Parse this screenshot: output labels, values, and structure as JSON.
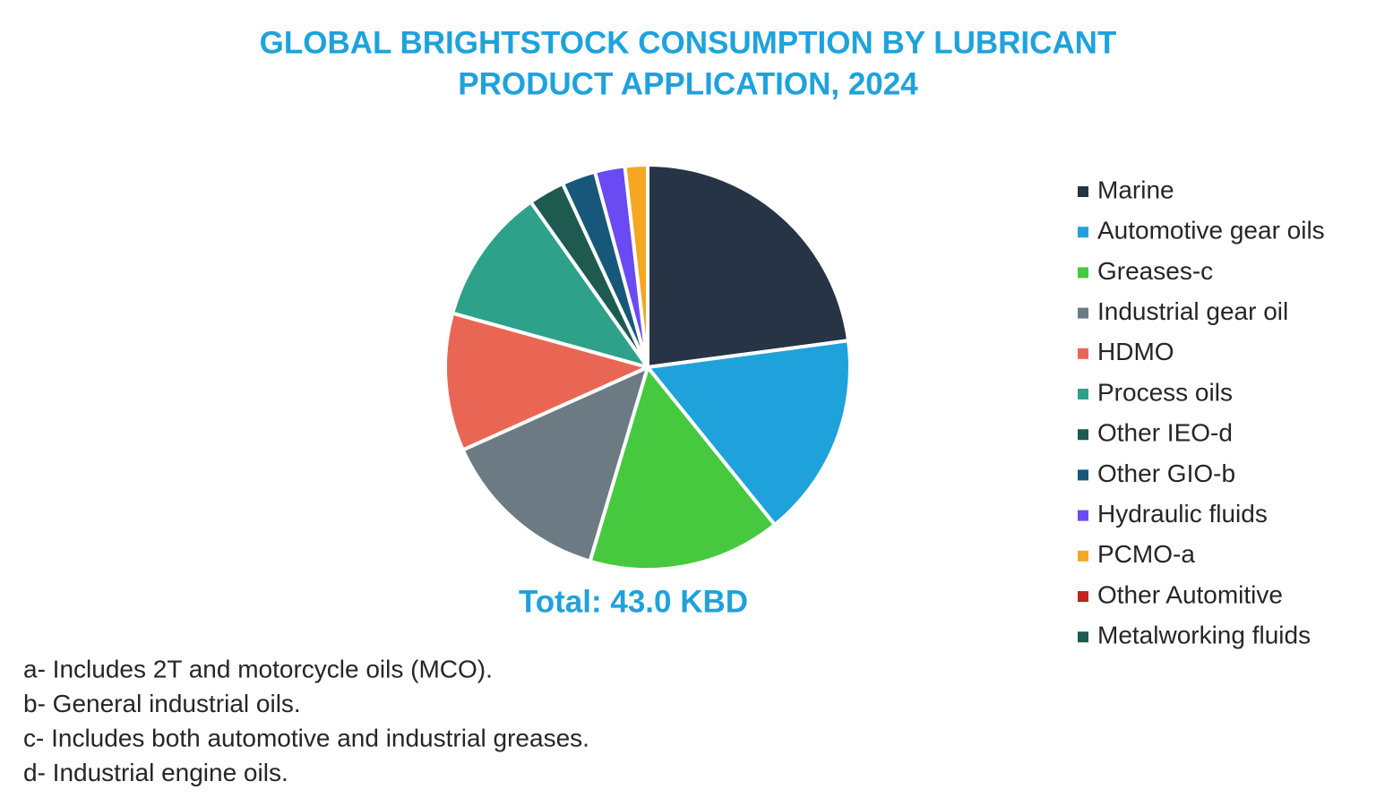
{
  "chart_data": {
    "type": "pie",
    "title": [
      "GLOBAL BRIGHTSTOCK CONSUMPTION BY LUBRICANT",
      "PRODUCT APPLICATION, 2024"
    ],
    "annotation": "Total: 43.0 KBD",
    "categories": [
      "Marine",
      "Automotive gear oils",
      "Greases-c",
      "Industrial gear oil",
      "HDMO",
      "Process oils",
      "Other IEO-d",
      "Other GIO-b",
      "Hydraulic fluids",
      "PCMO-a",
      "Other Automitive",
      "Metalworking fluids"
    ],
    "values": [
      22.9,
      16.3,
      15.4,
      13.7,
      11.0,
      10.9,
      2.9,
      2.7,
      2.4,
      1.8,
      0,
      0
    ],
    "colors": [
      "#263445",
      "#1fa2dc",
      "#46c93e",
      "#6c7a83",
      "#ea6654",
      "#2ea18a",
      "#1e5a50",
      "#17587a",
      "#6a4af2",
      "#f5a623",
      "#c0261e",
      "#1e5a50"
    ],
    "legend": "right",
    "footnotes": [
      "a- Includes 2T and motorcycle oils (MCO).",
      "b- General industrial oils.",
      "c- Includes both automotive and industrial greases.",
      "d- Industrial engine oils."
    ]
  }
}
